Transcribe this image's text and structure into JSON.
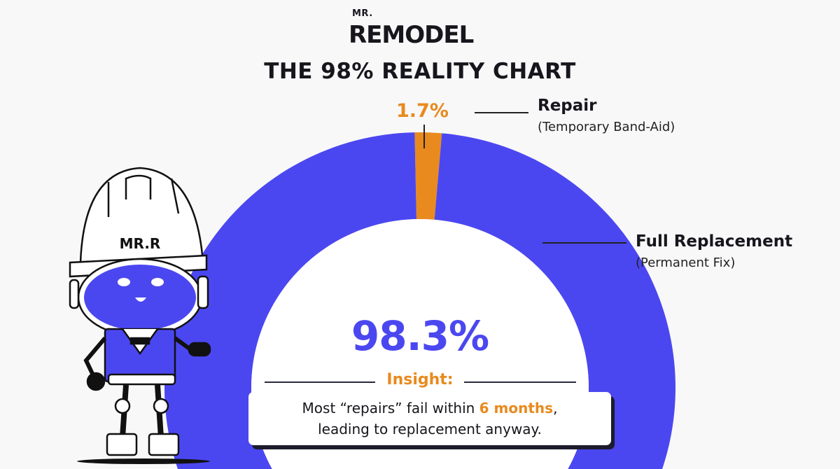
{
  "brand": {
    "prefix": "MR.",
    "name": "REMODEL"
  },
  "title": "THE 98% REALITY CHART",
  "colors": {
    "replacement": "#4b47f0",
    "repair": "#e88a1e",
    "text": "#16161c"
  },
  "chart_data": {
    "type": "pie",
    "variant": "donut",
    "title": "THE 98% REALITY CHART",
    "slices": [
      {
        "name": "Repair",
        "sublabel": "(Temporary Band-Aid)",
        "value": 1.7,
        "label": "1.7%",
        "color": "#e88a1e"
      },
      {
        "name": "Full Replacement",
        "sublabel": "(Permanent Fix)",
        "value": 98.3,
        "label": "98.3%",
        "color": "#4b47f0"
      }
    ]
  },
  "insight": {
    "title": "Insight:",
    "line1_pre": "Most “repairs” fail within ",
    "line1_highlight": "6 months",
    "line1_post": ",",
    "line2": "leading to replacement anyway."
  },
  "mascot": {
    "helmet_text": "MR.R"
  }
}
